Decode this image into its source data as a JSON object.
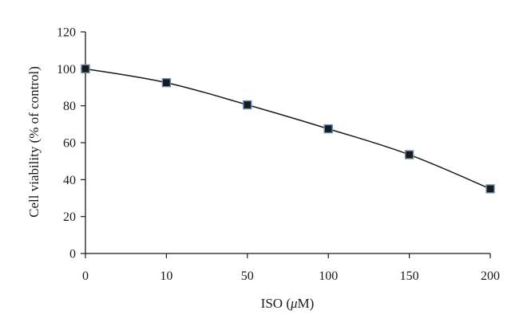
{
  "chart_data": {
    "type": "line",
    "x_axis_type": "categorical",
    "categories": [
      "0",
      "10",
      "50",
      "100",
      "150",
      "200"
    ],
    "series": [
      {
        "values": [
          100,
          92.5,
          80.5,
          67.5,
          53.5,
          35
        ]
      }
    ],
    "xlabel_parts": [
      "ISO (",
      "μ",
      "M)"
    ],
    "ylabel": "Cell viability (% of control)",
    "ylim": [
      0,
      120
    ],
    "yticks": [
      0,
      20,
      40,
      60,
      80,
      100,
      120
    ],
    "grid": false,
    "legend": "none",
    "line_color": "#1a1a1a",
    "marker": "square",
    "marker_fill": "#1a1a1a",
    "marker_edge_color": "#6b8fb3"
  }
}
